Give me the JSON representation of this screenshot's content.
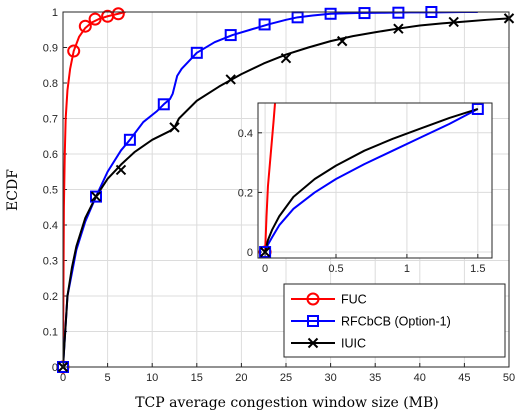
{
  "chart_data": [
    {
      "type": "line",
      "xlabel": "TCP average congestion window size (MB)",
      "ylabel": "ECDF",
      "xlim": [
        0,
        50
      ],
      "ylim": [
        0,
        1
      ],
      "xticks": [
        "0",
        "5",
        "10",
        "15",
        "20",
        "25",
        "30",
        "35",
        "40",
        "45",
        "50"
      ],
      "yticks": [
        "0",
        "0.1",
        "0.2",
        "0.3",
        "0.4",
        "0.5",
        "0.6",
        "0.7",
        "0.8",
        "0.9",
        "1"
      ],
      "grid": true,
      "legend_position": "bottom-right",
      "series": [
        {
          "name": "FUC",
          "color": "#ff0000",
          "marker": "circle",
          "x": [
            0,
            0.1,
            0.2,
            0.3,
            0.5,
            0.8,
            1.2,
            1.8,
            2.5,
            3.2,
            4.0,
            5.0,
            6.2,
            7.0
          ],
          "y": [
            0,
            0.45,
            0.6,
            0.7,
            0.78,
            0.84,
            0.89,
            0.93,
            0.955,
            0.97,
            0.98,
            0.988,
            0.995,
            1.0
          ],
          "marker_x": [
            0,
            1.2,
            2.5,
            3.6,
            5.0,
            6.2
          ],
          "marker_y": [
            0,
            0.89,
            0.96,
            0.98,
            0.988,
            0.995
          ]
        },
        {
          "name": "RFCbCB (Option-1)",
          "color": "#0000ff",
          "marker": "square",
          "x": [
            0,
            0.5,
            1.5,
            2.5,
            3.7,
            5.0,
            6.5,
            7.5,
            9.0,
            10.5,
            11.3,
            12.0,
            12.3,
            12.8,
            13.3,
            15.0,
            17.0,
            19.0,
            21.0,
            23.0,
            25.0,
            26.3,
            28.0,
            30.0,
            33.0,
            36.0,
            39.0,
            42.0,
            45.0,
            46.5
          ],
          "y": [
            0,
            0.2,
            0.33,
            0.41,
            0.48,
            0.55,
            0.61,
            0.64,
            0.69,
            0.72,
            0.74,
            0.755,
            0.77,
            0.82,
            0.84,
            0.885,
            0.915,
            0.935,
            0.95,
            0.965,
            0.978,
            0.985,
            0.99,
            0.995,
            0.997,
            0.998,
            0.999,
            0.999,
            1.0,
            1.0
          ],
          "marker_x": [
            0,
            3.7,
            7.5,
            11.3,
            15.0,
            18.8,
            22.6,
            26.3,
            30.0,
            33.8,
            37.6,
            41.3
          ],
          "marker_y": [
            0,
            0.48,
            0.64,
            0.74,
            0.885,
            0.935,
            0.965,
            0.985,
            0.995,
            0.997,
            0.998,
            1.0
          ]
        },
        {
          "name": "IUIC",
          "color": "#000000",
          "marker": "x",
          "x": [
            0,
            0.5,
            1.0,
            1.5,
            2.5,
            3.7,
            5.0,
            6.5,
            8.0,
            10.0,
            12.0,
            12.5,
            13.0,
            15.0,
            17.5,
            20.0,
            22.5,
            25.0,
            27.5,
            30.0,
            32.5,
            35.0,
            37.5,
            40.0,
            42.5,
            45.0,
            47.5,
            50.0
          ],
          "y": [
            0,
            0.2,
            0.28,
            0.34,
            0.42,
            0.48,
            0.53,
            0.57,
            0.605,
            0.64,
            0.665,
            0.675,
            0.7,
            0.75,
            0.79,
            0.825,
            0.855,
            0.88,
            0.9,
            0.918,
            0.932,
            0.943,
            0.953,
            0.962,
            0.968,
            0.973,
            0.978,
            0.982
          ],
          "marker_x": [
            0,
            3.7,
            6.5,
            12.5,
            18.8,
            25.0,
            31.3,
            37.6,
            43.8,
            50.0
          ],
          "marker_y": [
            0,
            0.48,
            0.555,
            0.675,
            0.81,
            0.87,
            0.918,
            0.953,
            0.972,
            0.982
          ]
        }
      ]
    },
    {
      "type": "line",
      "role": "inset",
      "xlim": [
        -0.05,
        1.6
      ],
      "ylim": [
        -0.02,
        0.5
      ],
      "xticks": [
        "0",
        "0.5",
        "1",
        "1.5"
      ],
      "yticks": [
        "0",
        "0.2",
        "0.4"
      ],
      "grid": true,
      "series": [
        {
          "name": "FUC",
          "color": "#ff0000",
          "x": [
            0,
            0.01,
            0.02,
            0.04,
            0.06,
            0.07
          ],
          "y": [
            0,
            0.12,
            0.22,
            0.33,
            0.44,
            0.5
          ],
          "marker_x": [
            0
          ],
          "marker_y": [
            0
          ]
        },
        {
          "name": "RFCbCB (Option-1)",
          "color": "#0000ff",
          "x": [
            0,
            0.02,
            0.05,
            0.1,
            0.2,
            0.35,
            0.5,
            0.7,
            0.9,
            1.1,
            1.3,
            1.5
          ],
          "y": [
            0,
            0.025,
            0.05,
            0.09,
            0.145,
            0.2,
            0.245,
            0.295,
            0.34,
            0.385,
            0.43,
            0.48
          ],
          "marker_x": [
            0,
            1.5
          ],
          "marker_y": [
            0,
            0.48
          ]
        },
        {
          "name": "IUIC",
          "color": "#000000",
          "x": [
            0,
            0.02,
            0.05,
            0.1,
            0.2,
            0.35,
            0.5,
            0.7,
            0.9,
            1.1,
            1.3,
            1.5
          ],
          "y": [
            0,
            0.04,
            0.075,
            0.12,
            0.185,
            0.245,
            0.29,
            0.34,
            0.38,
            0.415,
            0.45,
            0.48
          ],
          "marker_x": [
            0
          ],
          "marker_y": [
            0
          ]
        }
      ]
    }
  ]
}
